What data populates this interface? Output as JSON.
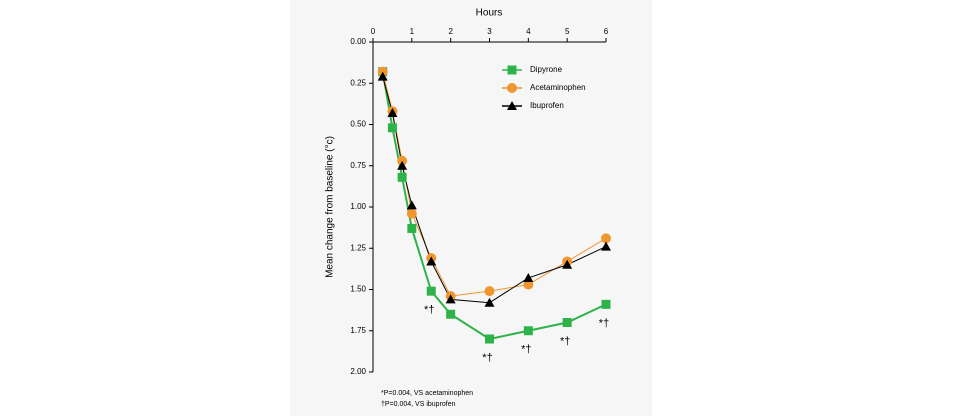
{
  "chart_data": {
    "type": "line",
    "x_label": "Hours",
    "y_label": "Mean change from baseline  (°c)",
    "x": [
      0.25,
      0.5,
      0.75,
      1,
      1.5,
      2,
      3,
      4,
      5,
      6
    ],
    "series": [
      {
        "name": "Dipyrone",
        "color": "#2db34a",
        "marker": "square",
        "values": [
          0.18,
          0.52,
          0.82,
          1.13,
          1.51,
          1.65,
          1.8,
          1.75,
          1.7,
          1.59
        ]
      },
      {
        "name": "Acetaminophen",
        "color": "#f0962f",
        "marker": "circle",
        "values": [
          0.18,
          0.42,
          0.72,
          1.04,
          1.31,
          1.54,
          1.51,
          1.47,
          1.33,
          1.19
        ]
      },
      {
        "name": "Ibuprofen",
        "color": "#000000",
        "marker": "triangle",
        "values": [
          0.21,
          0.43,
          0.75,
          0.99,
          1.33,
          1.56,
          1.58,
          1.43,
          1.35,
          1.24
        ]
      }
    ],
    "xlim": [
      0,
      6
    ],
    "xticks": [
      0,
      1,
      2,
      3,
      4,
      5,
      6
    ],
    "ylim": [
      0,
      2
    ],
    "y_inverted": true,
    "yticks": [
      {
        "value": 0,
        "label": "0.00"
      },
      {
        "value": 0.25,
        "label": "0.25"
      },
      {
        "value": 0.5,
        "label": "0.50"
      },
      {
        "value": 0.75,
        "label": "0.75"
      },
      {
        "value": 1,
        "label": "1.00"
      },
      {
        "value": 1.25,
        "label": "1.25"
      },
      {
        "value": 1.5,
        "label": "1.50"
      },
      {
        "value": 1.75,
        "label": "1.75"
      },
      {
        "value": 2,
        "label": "2.00"
      }
    ],
    "annotations": [
      {
        "text": "*†",
        "x": 1.5
      },
      {
        "text": "*†",
        "x": 3
      },
      {
        "text": "*†",
        "x": 4
      },
      {
        "text": "*†",
        "x": 5
      },
      {
        "text": "*†",
        "x": 6
      }
    ],
    "footnotes": [
      "*P=0.004, VS acetaminophen",
      "†P=0.004, VS ibuprofen"
    ],
    "legend": "top-right"
  }
}
